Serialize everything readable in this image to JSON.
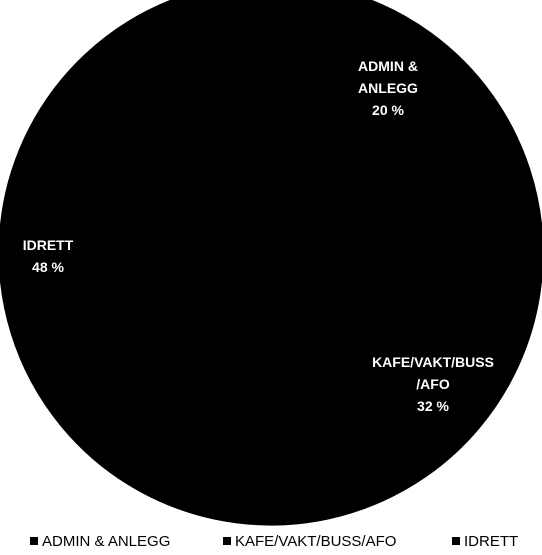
{
  "chart_data": {
    "type": "pie",
    "title": "",
    "start_angle_deg": 0,
    "direction": "clockwise",
    "legend_position": "bottom",
    "slices": [
      {
        "name": "ADMIN & ANLEGG",
        "value": 20,
        "color": "#000000",
        "label_lines": [
          "ADMIN &",
          "ANLEGG",
          "20 %"
        ]
      },
      {
        "name": "KAFE/VAKT/BUSS/AFO",
        "value": 32,
        "color": "#000000",
        "label_lines": [
          "KAFE/VAKT/BUSS",
          "/AFO",
          "32 %"
        ]
      },
      {
        "name": "IDRETT",
        "value": 48,
        "color": "#000000",
        "label_lines": [
          "IDRETT",
          "48 %"
        ]
      }
    ]
  }
}
